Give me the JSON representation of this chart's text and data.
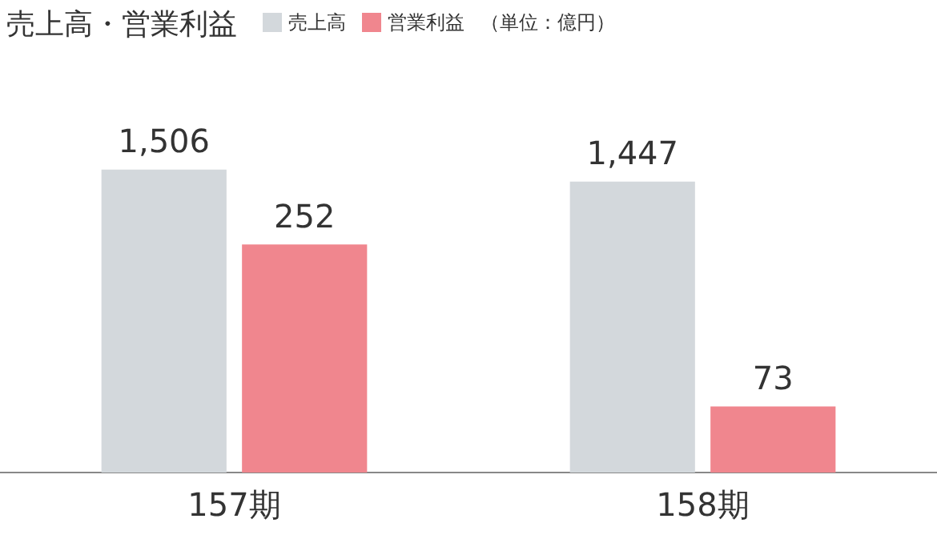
{
  "chart_data": {
    "type": "bar",
    "title": "売上高・営業利益",
    "annotations": [
      "（単位：億円）"
    ],
    "categories": [
      "157期",
      "158期"
    ],
    "series": [
      {
        "name": "売上高",
        "color": "#d3d8dc",
        "values": [
          1506,
          1447
        ],
        "value_labels": [
          "1,506",
          "1,447"
        ]
      },
      {
        "name": "営業利益",
        "color": "#f0868e",
        "values": [
          252,
          73
        ],
        "value_labels": [
          "252",
          "73"
        ],
        "axis": "y2"
      }
    ],
    "tick_labels": "x",
    "grid": false,
    "legend": "top"
  }
}
